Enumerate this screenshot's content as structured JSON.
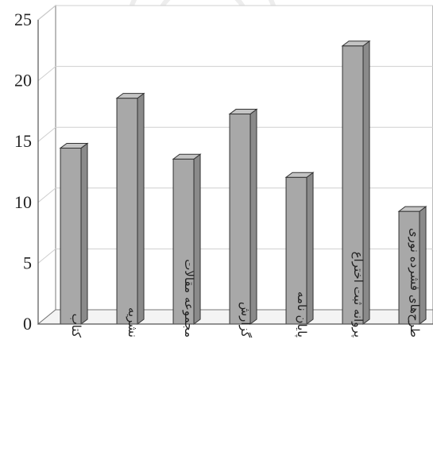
{
  "chart_data": {
    "type": "bar",
    "title": "",
    "xlabel": "",
    "ylabel": "",
    "categories": [
      "کتاب",
      "نشریه",
      "مجموعه مقالات",
      "گزارش",
      "پایان نامه",
      "پروانه ثبت اختراع",
      "طرح‌های فشرده نوری"
    ],
    "values": [
      14.2,
      18.3,
      13.3,
      17.0,
      11.8,
      22.6,
      9.0
    ],
    "yticks": [
      0,
      5,
      10,
      15,
      20,
      25
    ],
    "ylim": [
      0,
      25
    ],
    "grid": true,
    "bar_color": "#a8a8a8"
  }
}
